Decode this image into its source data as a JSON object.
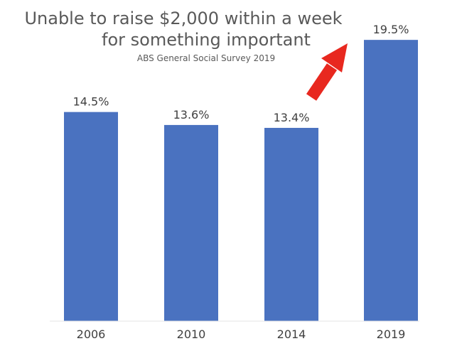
{
  "chart_data": {
    "type": "bar",
    "title": "Unable to raise $2,000 within a week",
    "title_line2": "for something important",
    "subtitle": "ABS General Social Survey 2019",
    "categories": [
      "2006",
      "2010",
      "2014",
      "2019"
    ],
    "values": [
      14.5,
      13.6,
      13.4,
      19.5
    ],
    "data_labels": [
      "14.5%",
      "13.6%",
      "13.4%",
      "19.5%"
    ],
    "ylim": [
      0,
      20
    ],
    "grid": false,
    "legend": "none",
    "bar_color": "#4A72C0",
    "annotation": {
      "type": "arrow",
      "color": "#E8281F",
      "points_to": "2019"
    }
  }
}
